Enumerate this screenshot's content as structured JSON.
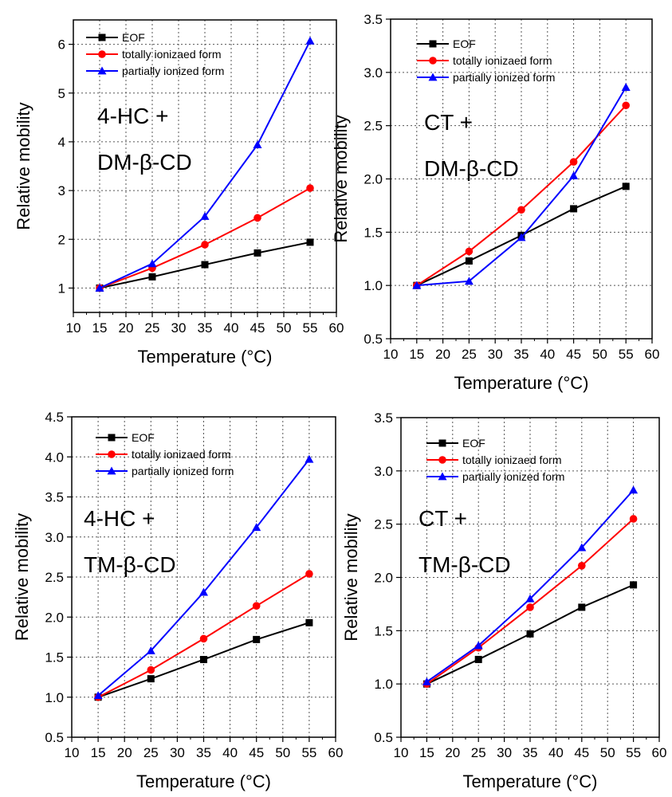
{
  "chart_data": [
    {
      "type": "line",
      "title": "",
      "xlabel": "Temperature (°C)",
      "ylabel": "Relative mobility",
      "xlim": [
        10,
        60
      ],
      "ylim": [
        0.5,
        6.5
      ],
      "xticks": [
        10,
        15,
        20,
        25,
        30,
        35,
        40,
        45,
        50,
        55,
        60
      ],
      "yticks": [
        1,
        2,
        3,
        4,
        5,
        6
      ],
      "ytick_labels": [
        "1",
        "2",
        "3",
        "4",
        "5",
        "6"
      ],
      "grid": true,
      "legend_position": "top-left",
      "annotation": [
        "4-HC +",
        "DM-β-CD"
      ],
      "x": [
        15,
        25,
        35,
        45,
        55
      ],
      "series": [
        {
          "name": "EOF",
          "values": [
            1.0,
            1.23,
            1.48,
            1.72,
            1.94
          ],
          "color": "#000000",
          "marker": "square"
        },
        {
          "name": "totally ionizaed form",
          "values": [
            1.0,
            1.41,
            1.89,
            2.44,
            3.05
          ],
          "color": "#ff0000",
          "marker": "circle"
        },
        {
          "name": "partially ionized form",
          "values": [
            1.0,
            1.5,
            2.47,
            3.94,
            6.07
          ],
          "color": "#0000ff",
          "marker": "triangle"
        }
      ]
    },
    {
      "type": "line",
      "title": "",
      "xlabel": "Temperature (°C)",
      "ylabel": "Relative mobility",
      "xlim": [
        10,
        60
      ],
      "ylim": [
        0.5,
        3.5
      ],
      "xticks": [
        10,
        15,
        20,
        25,
        30,
        35,
        40,
        45,
        50,
        55,
        60
      ],
      "yticks": [
        0.5,
        1.0,
        1.5,
        2.0,
        2.5,
        3.0,
        3.5
      ],
      "ytick_labels": [
        "0.5",
        "1.0",
        "1.5",
        "2.0",
        "2.5",
        "3.0",
        "3.5"
      ],
      "grid": true,
      "legend_position": "top-left",
      "annotation": [
        "CT +",
        "DM-β-CD"
      ],
      "x": [
        15,
        25,
        35,
        45,
        55
      ],
      "series": [
        {
          "name": "EOF",
          "values": [
            1.0,
            1.23,
            1.47,
            1.72,
            1.93
          ],
          "color": "#000000",
          "marker": "square"
        },
        {
          "name": "totally ionizaed form",
          "values": [
            1.0,
            1.32,
            1.71,
            2.16,
            2.69
          ],
          "color": "#ff0000",
          "marker": "circle"
        },
        {
          "name": "partially ionized form",
          "values": [
            1.0,
            1.04,
            1.45,
            2.03,
            2.86
          ],
          "color": "#0000ff",
          "marker": "triangle"
        }
      ]
    },
    {
      "type": "line",
      "title": "",
      "xlabel": "Temperature (°C)",
      "ylabel": "Relative mobility",
      "xlim": [
        10,
        60
      ],
      "ylim": [
        0.5,
        4.5
      ],
      "xticks": [
        10,
        15,
        20,
        25,
        30,
        35,
        40,
        45,
        50,
        55,
        60
      ],
      "yticks": [
        0.5,
        1.0,
        1.5,
        2.0,
        2.5,
        3.0,
        3.5,
        4.0,
        4.5
      ],
      "ytick_labels": [
        "0.5",
        "1.0",
        "1.5",
        "2.0",
        "2.5",
        "3.0",
        "3.5",
        "4.0",
        "4.5"
      ],
      "grid": true,
      "legend_position": "top-right",
      "annotation": [
        "4-HC +",
        "TM-β-CD"
      ],
      "x": [
        15,
        25,
        35,
        45,
        55
      ],
      "series": [
        {
          "name": "EOF",
          "values": [
            1.0,
            1.23,
            1.47,
            1.72,
            1.93
          ],
          "color": "#000000",
          "marker": "square"
        },
        {
          "name": "totally ionizaed form",
          "values": [
            1.0,
            1.34,
            1.73,
            2.14,
            2.54
          ],
          "color": "#ff0000",
          "marker": "circle"
        },
        {
          "name": "partially ionized form",
          "values": [
            1.02,
            1.58,
            2.31,
            3.12,
            3.97
          ],
          "color": "#0000ff",
          "marker": "triangle"
        }
      ]
    },
    {
      "type": "line",
      "title": "",
      "xlabel": "Temperature (°C)",
      "ylabel": "Relative mobility",
      "xlim": [
        10,
        60
      ],
      "ylim": [
        0.5,
        3.5
      ],
      "xticks": [
        10,
        15,
        20,
        25,
        30,
        35,
        40,
        45,
        50,
        55,
        60
      ],
      "yticks": [
        0.5,
        1.0,
        1.5,
        2.0,
        2.5,
        3.0,
        3.5
      ],
      "ytick_labels": [
        "0.5",
        "1.0",
        "1.5",
        "2.0",
        "2.5",
        "3.0",
        "3.5"
      ],
      "grid": true,
      "legend_position": "top-left",
      "annotation": [
        "CT +",
        "TM-β-CD"
      ],
      "x": [
        15,
        25,
        35,
        45,
        55
      ],
      "series": [
        {
          "name": "EOF",
          "values": [
            1.0,
            1.23,
            1.47,
            1.72,
            1.93
          ],
          "color": "#000000",
          "marker": "square"
        },
        {
          "name": "totally ionizaed form",
          "values": [
            1.0,
            1.34,
            1.72,
            2.11,
            2.55
          ],
          "color": "#ff0000",
          "marker": "circle"
        },
        {
          "name": "partially ionized form",
          "values": [
            1.02,
            1.36,
            1.8,
            2.28,
            2.82
          ],
          "color": "#0000ff",
          "marker": "triangle"
        }
      ]
    }
  ]
}
